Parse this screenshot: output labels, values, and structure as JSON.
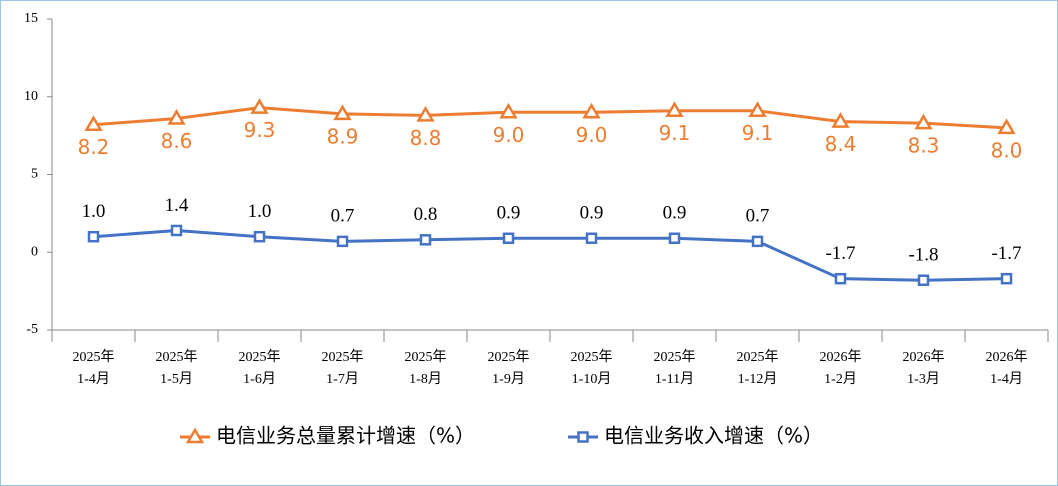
{
  "chart_data": {
    "type": "line",
    "categories": [
      "2025年\n1-4月",
      "2025年\n1-5月",
      "2025年\n1-6月",
      "2025年\n1-7月",
      "2025年\n1-8月",
      "2025年\n1-9月",
      "2025年\n1-10月",
      "2025年\n1-11月",
      "2025年\n1-12月",
      "2026年\n1-2月",
      "2026年\n1-3月",
      "2026年\n1-4月"
    ],
    "series": [
      {
        "name": "电信业务总量累计增速（%）",
        "color": "#ed7d31",
        "marker": "triangle",
        "values": [
          8.2,
          8.6,
          9.3,
          8.9,
          8.8,
          9.0,
          9.0,
          9.1,
          9.1,
          8.4,
          8.3,
          8.0
        ],
        "value_labels": [
          "8.2",
          "8.6",
          "9.3",
          "8.9",
          "8.8",
          "9.0",
          "9.0",
          "9.1",
          "9.1",
          "8.4",
          "8.3",
          "8.0"
        ]
      },
      {
        "name": "电信业务收入增速（%）",
        "color": "#4472c4",
        "marker": "square",
        "values": [
          1.0,
          1.4,
          1.0,
          0.7,
          0.8,
          0.9,
          0.9,
          0.9,
          0.7,
          -1.7,
          -1.8,
          -1.7
        ],
        "value_labels": [
          "1.0",
          "1.4",
          "1.0",
          "0.7",
          "0.8",
          "0.9",
          "0.9",
          "0.9",
          "0.7",
          "-1.7",
          "-1.8",
          "-1.7"
        ]
      }
    ],
    "ylim": [
      -5,
      15
    ],
    "yticks": [
      -5,
      0,
      5,
      10,
      15
    ],
    "grid": false,
    "legend": "bottom"
  }
}
